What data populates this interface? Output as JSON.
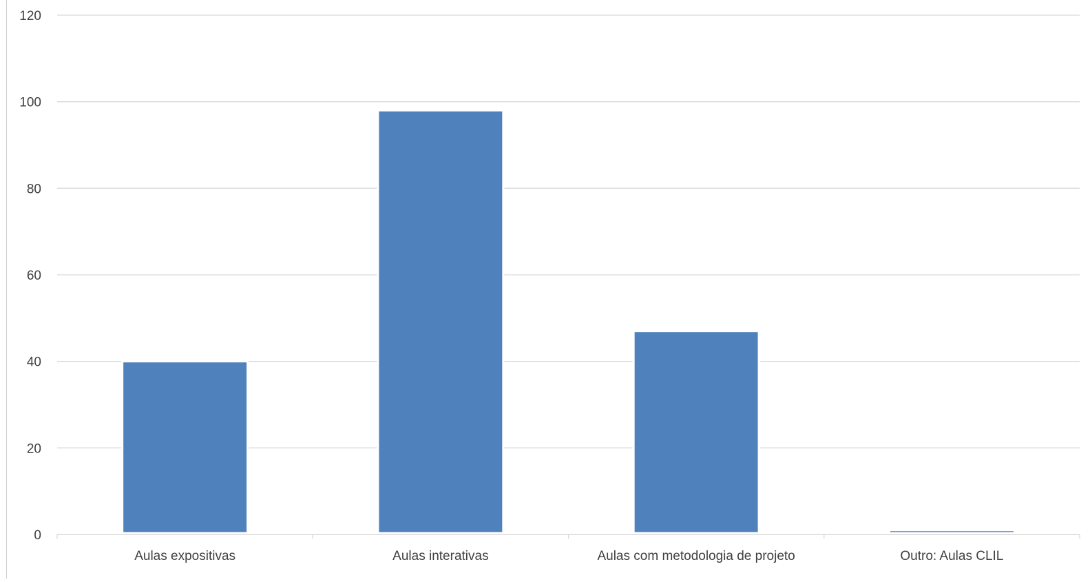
{
  "chart_data": {
    "type": "bar",
    "title": "",
    "xlabel": "",
    "ylabel": "",
    "categories": [
      "Aulas expositivas",
      "Aulas interativas",
      "Aulas com metodologia de projeto",
      "Outro: Aulas CLIL"
    ],
    "values": [
      40,
      98,
      47,
      1
    ],
    "ylim": [
      0,
      120
    ],
    "yticks": [
      0,
      20,
      40,
      60,
      80,
      100,
      120
    ],
    "grid": true,
    "legend": "none",
    "colors": {
      "bar": "#4f81bd",
      "grid": "#d9d9d9",
      "axis": "#d9d9d9",
      "text": "#404040"
    }
  }
}
